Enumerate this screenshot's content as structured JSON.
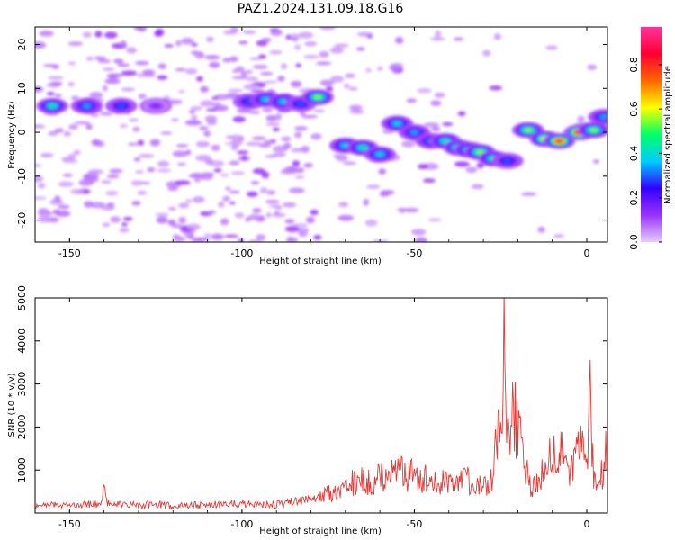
{
  "title": "PAZ1.2024.131.09.18.G16",
  "chart_data": [
    {
      "type": "heatmap",
      "xlabel": "Height of straight line (km)",
      "ylabel": "Frequency (Hz)",
      "xlim": [
        -160,
        6
      ],
      "ylim": [
        -25,
        24
      ],
      "xticks": [
        "-150",
        "-100",
        "-50",
        "0"
      ],
      "xtick_values": [
        -150,
        -100,
        -50,
        0
      ],
      "yticks": [
        "20",
        "10",
        "0",
        "-10",
        "-20"
      ],
      "ytick_values": [
        20,
        10,
        0,
        -10,
        -20
      ],
      "colorbar": {
        "label": "Normalized spectral amplitude",
        "range": [
          0,
          0.97
        ],
        "ticks": [
          "0.0",
          "0.2",
          "0.4",
          "0.6",
          "0.8"
        ],
        "tick_values": [
          0,
          0.2,
          0.4,
          0.6,
          0.8
        ],
        "colormap": [
          "#e6ccff",
          "#9933ff",
          "#3300ff",
          "#00ccff",
          "#00ff66",
          "#ffff00",
          "#ff6600",
          "#ff0033",
          "#ff3399"
        ]
      },
      "ridge": [
        {
          "x": -155,
          "y": 6,
          "v": 0.45
        },
        {
          "x": -145,
          "y": 6,
          "v": 0.35
        },
        {
          "x": -135,
          "y": 6,
          "v": 0.3
        },
        {
          "x": -125,
          "y": 6,
          "v": 0.15
        },
        {
          "x": -98,
          "y": 7,
          "v": 0.3
        },
        {
          "x": -93,
          "y": 7.5,
          "v": 0.4
        },
        {
          "x": -88,
          "y": 7,
          "v": 0.4
        },
        {
          "x": -83,
          "y": 6.5,
          "v": 0.3
        },
        {
          "x": -78,
          "y": 8,
          "v": 0.55
        },
        {
          "x": -70,
          "y": -3,
          "v": 0.4
        },
        {
          "x": -65,
          "y": -3.5,
          "v": 0.45
        },
        {
          "x": -60,
          "y": -5,
          "v": 0.4
        },
        {
          "x": -55,
          "y": 2,
          "v": 0.4
        },
        {
          "x": -50,
          "y": 0,
          "v": 0.35
        },
        {
          "x": -45,
          "y": -2,
          "v": 0.35
        },
        {
          "x": -41,
          "y": -2,
          "v": 0.45
        },
        {
          "x": -37,
          "y": -3.5,
          "v": 0.55
        },
        {
          "x": -34,
          "y": -4,
          "v": 0.5
        },
        {
          "x": -31,
          "y": -4.5,
          "v": 0.55
        },
        {
          "x": -27,
          "y": -6,
          "v": 0.5
        },
        {
          "x": -23,
          "y": -6.5,
          "v": 0.3
        },
        {
          "x": -17,
          "y": 0.5,
          "v": 0.55
        },
        {
          "x": -12,
          "y": -1.5,
          "v": 0.65
        },
        {
          "x": -8,
          "y": -2,
          "v": 0.8
        },
        {
          "x": -2,
          "y": 0,
          "v": 0.9
        },
        {
          "x": 2,
          "y": 0.5,
          "v": 0.55
        },
        {
          "x": 5,
          "y": 3.5,
          "v": 0.35
        }
      ]
    },
    {
      "type": "line",
      "xlabel": "Height of straight line (km)",
      "ylabel": "SNR (10 * v/v)",
      "xlim": [
        -160,
        6
      ],
      "ylim": [
        0,
        5000
      ],
      "xticks": [
        "-150",
        "-100",
        "-50",
        "0"
      ],
      "xtick_values": [
        -150,
        -100,
        -50,
        0
      ],
      "yticks": [
        "1000",
        "2000",
        "3000",
        "4000",
        "5000"
      ],
      "ytick_values": [
        1000,
        2000,
        3000,
        4000,
        5000
      ],
      "color": "#e53935",
      "series": [
        {
          "x": [
            -160,
            -155,
            -150,
            -145,
            -141,
            -140,
            -139,
            -135,
            -130,
            -125,
            -120,
            -115,
            -110,
            -105,
            -100,
            -95,
            -90,
            -85,
            -80,
            -78,
            -75,
            -72,
            -70,
            -68,
            -65,
            -62,
            -60,
            -58,
            -55,
            -52,
            -50,
            -48,
            -45,
            -42,
            -40,
            -38,
            -35,
            -32,
            -30,
            -28,
            -27,
            -26,
            -25,
            -24.5,
            -24,
            -23.5,
            -23,
            -22,
            -21,
            -20,
            -19,
            -18,
            -17,
            -16,
            -15,
            -14,
            -13,
            -12,
            -11,
            -10,
            -9,
            -8,
            -7,
            -6,
            -5,
            -4,
            -3,
            -2,
            -1,
            0,
            1,
            2,
            3,
            4,
            5,
            6
          ],
          "y": [
            150,
            180,
            160,
            200,
            220,
            600,
            250,
            200,
            180,
            200,
            170,
            180,
            190,
            200,
            220,
            180,
            200,
            250,
            300,
            350,
            450,
            500,
            600,
            700,
            800,
            650,
            900,
            750,
            1000,
            850,
            1100,
            800,
            900,
            700,
            750,
            600,
            800,
            550,
            700,
            650,
            1000,
            1800,
            2500,
            3000,
            4800,
            3200,
            2200,
            2000,
            2400,
            1800,
            1500,
            1000,
            900,
            600,
            700,
            800,
            900,
            1100,
            1200,
            1300,
            1200,
            1400,
            1300,
            1200,
            1100,
            1300,
            1500,
            1400,
            1600,
            1300,
            2800,
            1000,
            500,
            800,
            1200,
            1800
          ]
        }
      ]
    }
  ]
}
